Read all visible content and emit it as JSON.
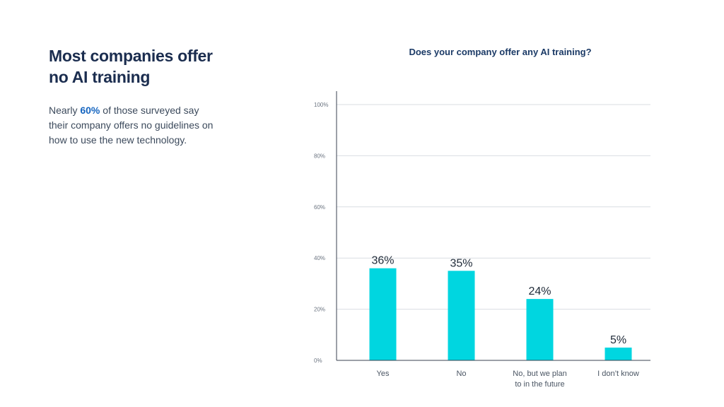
{
  "left": {
    "headline_line1": "Most companies offer",
    "headline_line2": "no AI training",
    "body_prefix": "Nearly ",
    "body_highlight": "60%",
    "body_suffix": " of those surveyed say their company offers no guidelines on how to use the new technology.",
    "highlight_color": "#1565c0"
  },
  "chart_data": {
    "type": "bar",
    "title": "Does your company offer any AI training?",
    "categories": [
      [
        "Yes"
      ],
      [
        "No"
      ],
      [
        "No, but we plan",
        "to in the future"
      ],
      [
        "I don’t know"
      ]
    ],
    "values": [
      36,
      35,
      24,
      5
    ],
    "value_labels": [
      "36%",
      "35%",
      "24%",
      "5%"
    ],
    "yticks": [
      0,
      20,
      40,
      60,
      80,
      100
    ],
    "ytick_labels": [
      "0%",
      "20%",
      "40%",
      "60%",
      "80%",
      "100%"
    ],
    "ylim": [
      0,
      100
    ],
    "xlabel": "",
    "ylabel": "",
    "grid": true,
    "bar_color": "#00d6e0",
    "grid_color": "#d9dde2",
    "axis_color": "#3a4150"
  }
}
